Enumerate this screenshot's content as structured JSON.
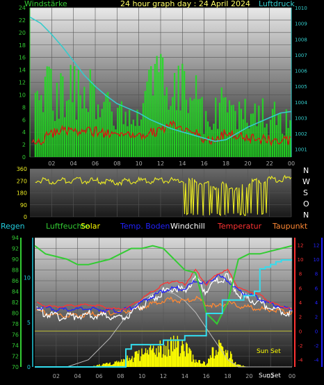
{
  "header": {
    "left_label": "Windstärke",
    "title": "24 hour graph day : 24 April 2024",
    "right_label": "Luftdruck"
  },
  "direction_letters": [
    "N",
    "W",
    "S",
    "O",
    "N"
  ],
  "bottom_header": {
    "regen": "Regen",
    "luftfeuchte": "Luftfeuchte",
    "solar": "Solar",
    "temp_boden": "Temp. Boden",
    "windchill": "Windchill",
    "temperatur": "Temperatur",
    "taupunkt": "Taupunkt"
  },
  "bottom_annotations": {
    "sun_set": "Sun Set",
    "sun_set_axis": "SunSet"
  },
  "colors": {
    "wind_speed": "#22dd22",
    "wind_gust": "#dd1111",
    "pressure": "#33cccc",
    "direction": "#eeee22",
    "temperature": "#ff3333",
    "windchill": "#ffffff",
    "dewpoint": "#ff8833",
    "soil_temp": "#2222ff",
    "humidity": "#33cc33",
    "rain": "#33ddee",
    "solar": "#ffff00",
    "header_green": "#33cc33",
    "header_yellow": "#ffff66",
    "regen_cyan": "#22ccdd"
  },
  "chart_data": [
    {
      "type": "line",
      "id": "wind_pressure",
      "title": "24 hour graph day : 24 April 2024",
      "ylabel": "Windstärke",
      "y2label": "Luftdruck",
      "x_ticks": [
        "02",
        "04",
        "06",
        "08",
        "10",
        "12",
        "14",
        "16",
        "18",
        "20",
        "22",
        "00"
      ],
      "ylim": [
        0,
        24
      ],
      "y_ticks": [
        0,
        2,
        4,
        6,
        8,
        10,
        12,
        14,
        16,
        18,
        20,
        22,
        24
      ],
      "y2lim": [
        1000.5,
        1010
      ],
      "y2_ticks": [
        1001,
        1002,
        1003,
        1004,
        1005,
        1006,
        1007,
        1008,
        1009,
        1010
      ],
      "series": [
        {
          "key": "pressure",
          "x": [
            0,
            1,
            2,
            3,
            4,
            5,
            6,
            7,
            8,
            9,
            10,
            11,
            12,
            13,
            14,
            15,
            16,
            17,
            18,
            19,
            20,
            21,
            22,
            23,
            24
          ],
          "values": [
            1009.4,
            1009.0,
            1008.3,
            1007.5,
            1006.6,
            1005.7,
            1005.0,
            1004.4,
            1003.9,
            1003.6,
            1003.3,
            1002.9,
            1002.6,
            1002.3,
            1002.1,
            1001.9,
            1001.7,
            1001.5,
            1001.6,
            1002.0,
            1002.4,
            1002.7,
            1003.0,
            1003.3,
            1003.4
          ]
        },
        {
          "key": "wind_speed",
          "x": [
            0,
            1,
            2,
            3,
            4,
            5,
            6,
            7,
            8,
            9,
            10,
            11,
            12,
            13,
            14,
            15,
            16,
            17,
            18,
            19,
            20,
            21,
            22,
            23,
            24
          ],
          "values": [
            2.5,
            3.5,
            5.5,
            6.5,
            6.0,
            6.0,
            6.0,
            5.5,
            4.0,
            5.0,
            5.0,
            5.5,
            6.5,
            8.0,
            7.0,
            6.5,
            3.0,
            4.0,
            5.5,
            4.5,
            4.0,
            4.0,
            3.5,
            3.5,
            3.0
          ]
        },
        {
          "key": "wind_gust",
          "x": [
            0,
            1,
            2,
            3,
            4,
            5,
            6,
            7,
            8,
            9,
            10,
            11,
            12,
            13,
            14,
            15,
            16,
            17,
            18,
            19,
            20,
            21,
            22,
            23,
            24
          ],
          "values": [
            8,
            14,
            15,
            16,
            15,
            14,
            16,
            14,
            10,
            12,
            12,
            15,
            17,
            18,
            16,
            17,
            10,
            11,
            14,
            12,
            12,
            11,
            10,
            10,
            8
          ]
        }
      ]
    },
    {
      "type": "scatter",
      "id": "wind_direction",
      "ylim": [
        0,
        360
      ],
      "y_ticks": [
        0,
        90,
        180,
        270,
        360
      ],
      "series": [
        {
          "key": "direction",
          "x": [
            0,
            1,
            2,
            3,
            4,
            5,
            6,
            7,
            8,
            9,
            10,
            11,
            12,
            13,
            14,
            15,
            16,
            17,
            18,
            19,
            20,
            21,
            22,
            23,
            24
          ],
          "values": [
            280,
            270,
            265,
            270,
            275,
            270,
            268,
            262,
            260,
            265,
            270,
            272,
            276,
            270,
            275,
            272,
            250,
            230,
            240,
            210,
            250,
            275,
            280,
            285,
            285
          ]
        }
      ]
    },
    {
      "type": "line",
      "id": "temp_humidity",
      "x_ticks": [
        "02",
        "04",
        "06",
        "08",
        "10",
        "12",
        "14",
        "16",
        "18",
        "20",
        "22",
        "00"
      ],
      "y_left_ticks": [
        70,
        72,
        74,
        76,
        78,
        80,
        82,
        84,
        86,
        88,
        90,
        92,
        94
      ],
      "y_left_lim": [
        70,
        94
      ],
      "y_rain_ticks": [
        0,
        5,
        10
      ],
      "y_rain_lim": [
        0,
        14.5
      ],
      "y_right_ticks": [
        -4,
        -2,
        0,
        2,
        4,
        6,
        8,
        10,
        12
      ],
      "y_right_lim": [
        -5,
        13
      ],
      "series": [
        {
          "key": "humidity",
          "x": [
            0,
            1,
            2,
            3,
            4,
            5,
            6,
            7,
            8,
            9,
            10,
            11,
            12,
            13,
            14,
            15,
            16,
            17,
            18,
            19,
            20,
            21,
            22,
            23,
            24
          ],
          "values": [
            92.5,
            91.0,
            90.5,
            90.0,
            89.0,
            89.0,
            89.5,
            90.0,
            91.0,
            92.0,
            92.0,
            92.5,
            92.0,
            90.0,
            88.0,
            87.5,
            80.0,
            78.0,
            82.0,
            90.0,
            91.0,
            91.0,
            91.5,
            92.0,
            92.5
          ]
        },
        {
          "key": "temperature",
          "x": [
            0,
            1,
            2,
            3,
            4,
            5,
            6,
            7,
            8,
            9,
            10,
            11,
            12,
            13,
            14,
            15,
            16,
            17,
            18,
            19,
            20,
            21,
            22,
            23,
            24
          ],
          "values": [
            4.0,
            3.5,
            3.4,
            3.5,
            3.6,
            3.7,
            3.5,
            3.2,
            3.0,
            3.5,
            4.5,
            5.5,
            6.5,
            7.0,
            6.5,
            8.5,
            6.5,
            8.0,
            8.5,
            6.0,
            5.5,
            5.0,
            4.0,
            3.5,
            3.0
          ]
        },
        {
          "key": "windchill",
          "x": [
            0,
            1,
            2,
            3,
            4,
            5,
            6,
            7,
            8,
            9,
            10,
            11,
            12,
            13,
            14,
            15,
            16,
            17,
            18,
            19,
            20,
            21,
            22,
            23,
            24
          ],
          "values": [
            3.0,
            2.5,
            2.0,
            2.0,
            2.2,
            2.3,
            2.1,
            2.0,
            1.8,
            2.5,
            3.5,
            4.5,
            5.5,
            6.0,
            5.5,
            7.5,
            5.5,
            7.0,
            7.5,
            5.0,
            4.5,
            4.0,
            3.2,
            2.8,
            2.5
          ]
        },
        {
          "key": "dewpoint",
          "x": [
            0,
            1,
            2,
            3,
            4,
            5,
            6,
            7,
            8,
            9,
            10,
            11,
            12,
            13,
            14,
            15,
            16,
            17,
            18,
            19,
            20,
            21,
            22,
            23,
            24
          ],
          "values": [
            3.0,
            2.5,
            2.3,
            2.2,
            2.2,
            2.3,
            2.4,
            2.5,
            2.6,
            3.0,
            3.3,
            3.8,
            4.3,
            4.4,
            4.0,
            4.6,
            3.8,
            3.3,
            4.0,
            3.5,
            3.3,
            3.1,
            3.0,
            2.8,
            2.6
          ]
        },
        {
          "key": "soil_temp",
          "x": [
            0,
            1,
            2,
            3,
            4,
            5,
            6,
            7,
            8,
            9,
            10,
            11,
            12,
            13,
            14,
            15,
            16,
            17,
            18,
            19,
            20,
            21,
            22,
            23,
            24
          ],
          "values": [
            3.5,
            3.2,
            3.0,
            3.0,
            3.0,
            3.1,
            3.0,
            2.8,
            2.8,
            3.2,
            4.0,
            4.8,
            5.6,
            6.0,
            5.8,
            7.0,
            6.5,
            7.8,
            7.0,
            5.5,
            5.0,
            4.5,
            3.8,
            3.3,
            3.0
          ]
        },
        {
          "key": "rain",
          "x": [
            0,
            7.5,
            8.5,
            9,
            11.5,
            12,
            13.5,
            14,
            15.5,
            16,
            17,
            17.5,
            19,
            19.5,
            20,
            20.5,
            21,
            21.5,
            22,
            22.5,
            23,
            24
          ],
          "values": [
            0,
            0,
            2,
            2.5,
            2.5,
            3,
            3,
            3.5,
            3.5,
            6,
            6,
            7.5,
            7.5,
            8,
            8,
            8.5,
            11,
            11.2,
            11.5,
            11.8,
            12,
            12
          ]
        },
        {
          "key": "solar_curve",
          "x": [
            0,
            3,
            5,
            7,
            8,
            9,
            10,
            11,
            12,
            13,
            14,
            15,
            16,
            17,
            18,
            19,
            20,
            21,
            24
          ],
          "values": [
            0,
            0,
            0.5,
            2.0,
            3.0,
            4.0,
            4.7,
            5.1,
            5.3,
            5.1,
            4.6,
            3.8,
            2.7,
            1.6,
            0.5,
            0,
            0,
            0,
            0
          ]
        },
        {
          "key": "solar",
          "x": [
            0,
            5,
            6,
            7,
            8,
            9,
            10,
            11,
            12,
            13,
            14,
            15,
            16,
            17,
            18,
            19,
            20,
            24
          ],
          "values": [
            0,
            0,
            0.3,
            0.5,
            1.0,
            1.5,
            2.0,
            2.5,
            3.0,
            4.0,
            3.0,
            1.0,
            0.5,
            3.5,
            2.5,
            0.3,
            0,
            0
          ]
        }
      ]
    }
  ]
}
